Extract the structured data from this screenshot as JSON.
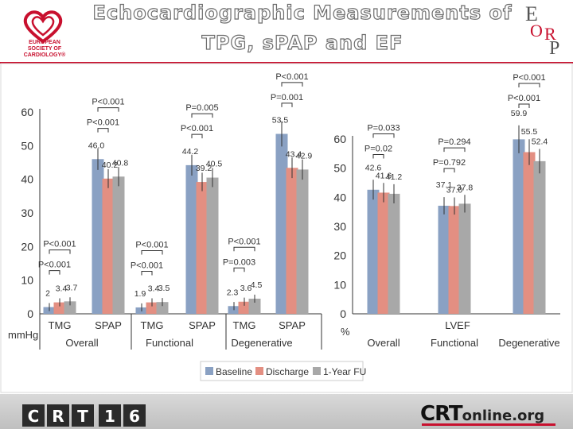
{
  "header": {
    "title_line1": "Echocardiographic Measurements of",
    "title_line2": "TPG, sPAP and EF",
    "esc_logo_text": [
      "EUROPEAN",
      "SOCIETY OF",
      "CARDIOLOGY®"
    ],
    "eorp_letters": [
      "E",
      "O",
      "R",
      "P"
    ]
  },
  "footer": {
    "crt_letters": [
      "C",
      "R",
      "T",
      "1",
      "6"
    ],
    "crtonline_main": "CRT",
    "crtonline_suffix": "online.org"
  },
  "colors": {
    "baseline": "#8aa1c3",
    "discharge": "#e38f82",
    "fu": "#a8a8a8",
    "brand_red": "#c8102e"
  },
  "legend": [
    "Baseline",
    "Discharge",
    "1-Year FU"
  ],
  "chart_data": [
    {
      "type": "bar",
      "ylabel": "mmHg",
      "ylim": [
        0,
        60
      ],
      "yticks": [
        "0",
        "10",
        "20",
        "30",
        "40",
        "50",
        "60"
      ],
      "categories": [
        "TMG",
        "SPAP",
        "TMG",
        "SPAP",
        "TMG",
        "SPAP"
      ],
      "groups": [
        "Overall",
        "Functional",
        "Degenerative"
      ],
      "series": [
        {
          "name": "Baseline",
          "values": [
            2,
            46.0,
            1.9,
            44.2,
            2.3,
            53.5
          ],
          "labels": [
            "2",
            "46.0",
            "1.9",
            "44.2",
            "2.3",
            "53.5"
          ]
        },
        {
          "name": "Discharge",
          "values": [
            3.4,
            40.2,
            3.4,
            39.2,
            3.6,
            43.4
          ],
          "labels": [
            "3.4",
            "40.2",
            "3.4",
            "39.2",
            "3.6",
            "43.4"
          ]
        },
        {
          "name": "1-Year FU",
          "values": [
            3.7,
            40.8,
            3.5,
            40.5,
            4.5,
            42.9
          ],
          "labels": [
            "3.7",
            "40.8",
            "3.5",
            "40.5",
            "4.5",
            "42.9"
          ]
        }
      ],
      "annotations": [
        {
          "text": "P<0.001",
          "cat": 0,
          "span": "b-d"
        },
        {
          "text": "P<0.001",
          "cat": 0,
          "span": "b-f"
        },
        {
          "text": "P<0.001",
          "cat": 1,
          "span": "b-d"
        },
        {
          "text": "P<0.001",
          "cat": 1,
          "span": "b-f"
        },
        {
          "text": "P<0.001",
          "cat": 2,
          "span": "b-d"
        },
        {
          "text": "P<0.001",
          "cat": 2,
          "span": "b-f"
        },
        {
          "text": "P<0.001",
          "cat": 3,
          "span": "b-d"
        },
        {
          "text": "P=0.005",
          "cat": 3,
          "span": "b-f"
        },
        {
          "text": "P=0.003",
          "cat": 4,
          "span": "b-d"
        },
        {
          "text": "P<0.001",
          "cat": 4,
          "span": "b-f"
        },
        {
          "text": "P=0.001",
          "cat": 5,
          "span": "b-d"
        },
        {
          "text": "P<0.001",
          "cat": 5,
          "span": "b-f"
        }
      ]
    },
    {
      "type": "bar",
      "ylabel": "%",
      "xlabel": "LVEF",
      "ylim": [
        0,
        60
      ],
      "yticks": [
        "0",
        "10",
        "20",
        "30",
        "40",
        "50",
        "60"
      ],
      "categories": [
        "Overall",
        "Functional",
        "Degenerative"
      ],
      "series": [
        {
          "name": "Baseline",
          "values": [
            42.6,
            37.1,
            59.9
          ],
          "labels": [
            "42.6",
            "37.1",
            "59.9"
          ]
        },
        {
          "name": "Discharge",
          "values": [
            41.6,
            37.0,
            55.5
          ],
          "labels": [
            "41.6",
            "37.0",
            "55.5"
          ]
        },
        {
          "name": "1-Year FU",
          "values": [
            41.2,
            37.8,
            52.4
          ],
          "labels": [
            "41.2",
            "37.8",
            "52.4"
          ]
        }
      ],
      "annotations": [
        {
          "text": "P=0.02",
          "cat": 0,
          "span": "b-d"
        },
        {
          "text": "P=0.033",
          "cat": 0,
          "span": "b-f"
        },
        {
          "text": "P=0.792",
          "cat": 1,
          "span": "b-d"
        },
        {
          "text": "P=0.294",
          "cat": 1,
          "span": "b-f"
        },
        {
          "text": "P<0.001",
          "cat": 2,
          "span": "b-d"
        },
        {
          "text": "P<0.001",
          "cat": 2,
          "span": "b-f"
        }
      ]
    }
  ]
}
